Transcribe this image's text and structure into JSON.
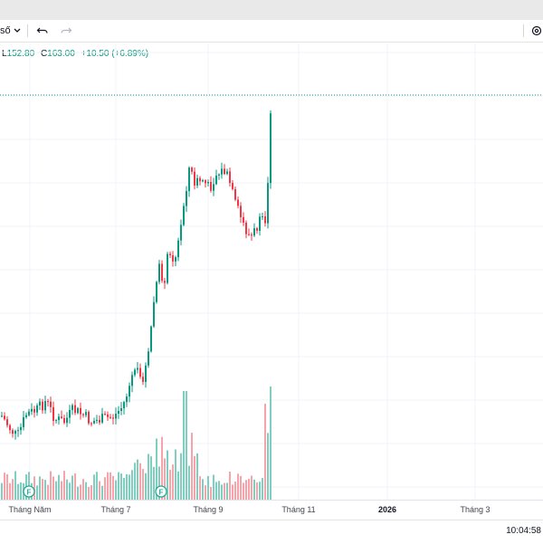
{
  "toolbar": {
    "interval_partial": "ső",
    "dropdown_icon": "chevron-down-icon",
    "undo_icon": "undo-icon",
    "redo_icon": "redo-icon",
    "settings_icon": "gear-icon"
  },
  "legend": {
    "low_label": "L",
    "low_value": "152.80",
    "close_label": "C",
    "close_value": "163.00",
    "change": "+10.50 (+6.89%)"
  },
  "time_axis": {
    "labels": [
      {
        "text": "Tháng Năm",
        "bold": false
      },
      {
        "text": "Tháng 7",
        "bold": false
      },
      {
        "text": "Tháng 9",
        "bold": false
      },
      {
        "text": "Tháng 11",
        "bold": false
      },
      {
        "text": "2026",
        "bold": true
      },
      {
        "text": "Tháng 3",
        "bold": false
      }
    ]
  },
  "markers": [
    {
      "label": "F"
    },
    {
      "label": "F"
    }
  ],
  "clock": "10:04:58",
  "colors": {
    "up": "#089981",
    "down": "#f23645",
    "volume_up": "#7fcfc0",
    "volume_down": "#f7a3a9",
    "grid": "#f0f3fa",
    "last_price_line": "#089981"
  },
  "chart_data": {
    "type": "candlestick",
    "last_close": 163.0,
    "last_low": 152.8,
    "last_change": 10.5,
    "last_change_pct": 6.89
  }
}
